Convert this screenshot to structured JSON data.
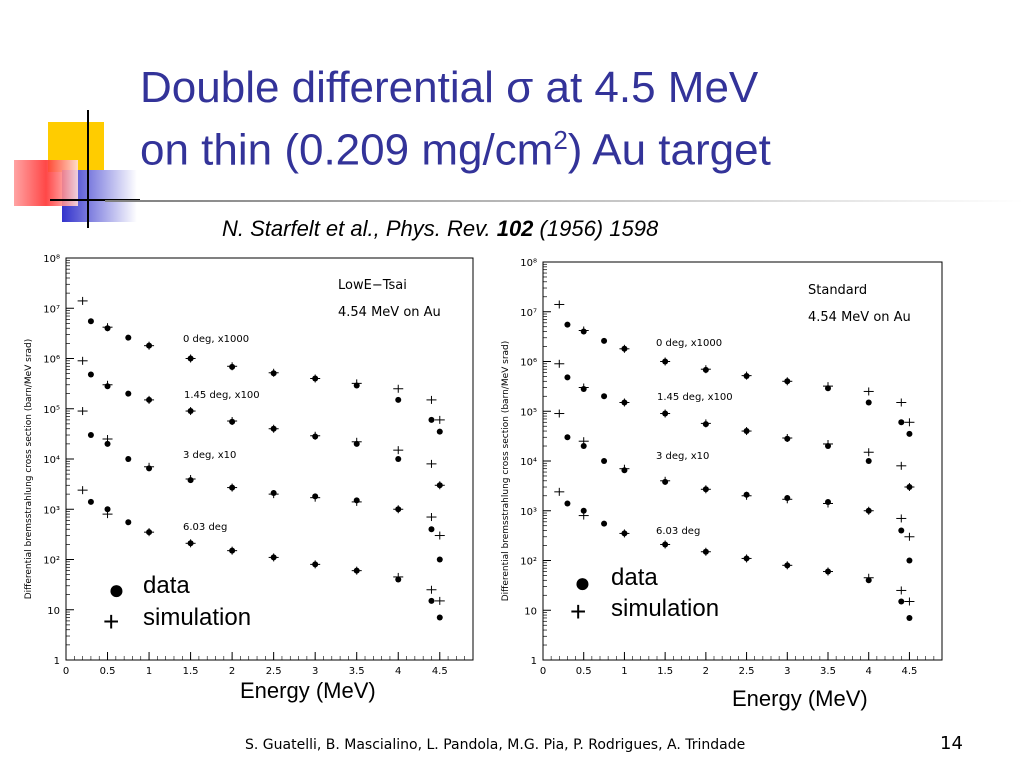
{
  "slide": {
    "title_line1": "Double differential σ at 4.5 MeV",
    "title_line2_a": "on thin (0.209 mg/cm",
    "title_line2_sup": "2",
    "title_line2_b": ") Au target",
    "citation_a": "N. Starfelt et al., Phys. Rev. ",
    "citation_b": "102",
    "citation_c": " (1956) 1598",
    "footer": "S. Guatelli, B. Mascialino, L. Pandola, M.G. Pia, P. Rodrigues, A. Trindade",
    "page_number": "14",
    "colors": {
      "title": "#333399",
      "deco_yellow": "#ffcc00",
      "deco_blue": "#3333cc",
      "deco_red": "#ff3333"
    }
  },
  "chart_data": [
    {
      "type": "scatter",
      "title": "",
      "xlabel": "Energy (MeV)",
      "ylabel": "Differential bremsstrahlung cross section (barn/MeV srad)",
      "xlim": [
        0,
        4.9
      ],
      "ylim": [
        1,
        100000000
      ],
      "yscale": "log",
      "xticks": [
        "0",
        "0.5",
        "1",
        "1.5",
        "2",
        "2.5",
        "3",
        "3.5",
        "4",
        "4.5"
      ],
      "yticks": [
        "1",
        "10",
        "10²",
        "10³",
        "10⁴",
        "10⁵",
        "10⁶",
        "10⁷",
        "10⁸"
      ],
      "annotations": [
        "LowE−Tsai",
        "4.54 MeV on Au"
      ],
      "legend": {
        "data": "data",
        "simulation": "simulation"
      },
      "series": [
        {
          "label": "0 deg, x1000",
          "name": "data",
          "x": [
            0.3,
            0.5,
            0.75,
            1.0,
            1.5,
            2.0,
            2.5,
            3.0,
            3.5,
            4.0,
            4.4,
            4.5
          ],
          "y": [
            5500000,
            4000000,
            2600000,
            1800000,
            1000000,
            680000,
            510000,
            400000,
            290000,
            150000,
            60000,
            35000
          ]
        },
        {
          "label": "0 deg, x1000",
          "name": "simulation",
          "x": [
            0.2,
            0.5,
            1.0,
            1.5,
            2.0,
            2.5,
            3.0,
            3.5,
            4.0,
            4.4,
            4.5
          ],
          "y": [
            14000000,
            4200000,
            1800000,
            1000000,
            700000,
            520000,
            400000,
            320000,
            250000,
            150000,
            60000
          ]
        },
        {
          "label": "1.45 deg, x100",
          "name": "data",
          "x": [
            0.3,
            0.5,
            0.75,
            1.0,
            1.5,
            2.0,
            2.5,
            3.0,
            3.5,
            4.0,
            4.5
          ],
          "y": [
            480000,
            280000,
            200000,
            150000,
            90000,
            55000,
            40000,
            28000,
            20000,
            10000,
            3000
          ]
        },
        {
          "label": "1.45 deg, x100",
          "name": "simulation",
          "x": [
            0.2,
            0.5,
            1.0,
            1.5,
            2.0,
            2.5,
            3.0,
            3.5,
            4.0,
            4.4,
            4.5
          ],
          "y": [
            900000,
            300000,
            150000,
            90000,
            57000,
            40000,
            29000,
            22000,
            15000,
            8000,
            3000
          ]
        },
        {
          "label": "3 deg, x10",
          "name": "data",
          "x": [
            0.3,
            0.5,
            0.75,
            1.0,
            1.5,
            2.0,
            2.5,
            3.0,
            3.5,
            4.0,
            4.4,
            4.5
          ],
          "y": [
            30000,
            20000,
            10000,
            6500,
            3800,
            2700,
            2100,
            1800,
            1500,
            1000,
            400,
            100
          ]
        },
        {
          "label": "3 deg, x10",
          "name": "simulation",
          "x": [
            0.2,
            0.5,
            1.0,
            1.5,
            2.0,
            2.5,
            3.0,
            3.5,
            4.0,
            4.4,
            4.5
          ],
          "y": [
            90000,
            25000,
            7000,
            4000,
            2700,
            2000,
            1700,
            1400,
            1000,
            700,
            300
          ]
        },
        {
          "label": "6.03 deg",
          "name": "data",
          "x": [
            0.3,
            0.5,
            0.75,
            1.0,
            1.5,
            2.0,
            2.5,
            3.0,
            3.5,
            4.0,
            4.4,
            4.5
          ],
          "y": [
            1400,
            1000,
            550,
            350,
            210,
            150,
            110,
            80,
            60,
            40,
            15,
            7
          ]
        },
        {
          "label": "6.03 deg",
          "name": "simulation",
          "x": [
            0.2,
            0.5,
            1.0,
            1.5,
            2.0,
            2.5,
            3.0,
            3.5,
            4.0,
            4.4,
            4.5
          ],
          "y": [
            2400,
            800,
            350,
            210,
            150,
            110,
            80,
            60,
            45,
            25,
            15
          ]
        }
      ]
    },
    {
      "type": "scatter",
      "title": "",
      "xlabel": "Energy (MeV)",
      "ylabel": "Differential bremsstrahlung cross section (barn/MeV srad)",
      "xlim": [
        0,
        4.9
      ],
      "ylim": [
        1,
        100000000
      ],
      "yscale": "log",
      "xticks": [
        "0",
        "0.5",
        "1",
        "1.5",
        "2",
        "2.5",
        "3",
        "3.5",
        "4",
        "4.5"
      ],
      "yticks": [
        "1",
        "10",
        "10²",
        "10³",
        "10⁴",
        "10⁵",
        "10⁶",
        "10⁷",
        "10⁸"
      ],
      "annotations": [
        "Standard",
        "4.54 MeV on Au"
      ],
      "legend": {
        "data": "data",
        "simulation": "simulation"
      },
      "series": [
        {
          "label": "0 deg, x1000",
          "name": "data",
          "x": [
            0.3,
            0.5,
            0.75,
            1.0,
            1.5,
            2.0,
            2.5,
            3.0,
            3.5,
            4.0,
            4.4,
            4.5
          ],
          "y": [
            5500000,
            4000000,
            2600000,
            1800000,
            1000000,
            680000,
            510000,
            400000,
            290000,
            150000,
            60000,
            35000
          ]
        },
        {
          "label": "0 deg, x1000",
          "name": "simulation",
          "x": [
            0.2,
            0.5,
            1.0,
            1.5,
            2.0,
            2.5,
            3.0,
            3.5,
            4.0,
            4.4,
            4.5
          ],
          "y": [
            14000000,
            4200000,
            1800000,
            1000000,
            700000,
            520000,
            400000,
            320000,
            250000,
            150000,
            60000
          ]
        },
        {
          "label": "1.45 deg, x100",
          "name": "data",
          "x": [
            0.3,
            0.5,
            0.75,
            1.0,
            1.5,
            2.0,
            2.5,
            3.0,
            3.5,
            4.0,
            4.5
          ],
          "y": [
            480000,
            280000,
            200000,
            150000,
            90000,
            55000,
            40000,
            28000,
            20000,
            10000,
            3000
          ]
        },
        {
          "label": "1.45 deg, x100",
          "name": "simulation",
          "x": [
            0.2,
            0.5,
            1.0,
            1.5,
            2.0,
            2.5,
            3.0,
            3.5,
            4.0,
            4.4,
            4.5
          ],
          "y": [
            900000,
            300000,
            150000,
            90000,
            57000,
            40000,
            29000,
            22000,
            15000,
            8000,
            3000
          ]
        },
        {
          "label": "3 deg, x10",
          "name": "data",
          "x": [
            0.3,
            0.5,
            0.75,
            1.0,
            1.5,
            2.0,
            2.5,
            3.0,
            3.5,
            4.0,
            4.4,
            4.5
          ],
          "y": [
            30000,
            20000,
            10000,
            6500,
            3800,
            2700,
            2100,
            1800,
            1500,
            1000,
            400,
            100
          ]
        },
        {
          "label": "3 deg, x10",
          "name": "simulation",
          "x": [
            0.2,
            0.5,
            1.0,
            1.5,
            2.0,
            2.5,
            3.0,
            3.5,
            4.0,
            4.4,
            4.5
          ],
          "y": [
            90000,
            25000,
            7000,
            4000,
            2700,
            2000,
            1700,
            1400,
            1000,
            700,
            300
          ]
        },
        {
          "label": "6.03 deg",
          "name": "data",
          "x": [
            0.3,
            0.5,
            0.75,
            1.0,
            1.5,
            2.0,
            2.5,
            3.0,
            3.5,
            4.0,
            4.4,
            4.5
          ],
          "y": [
            1400,
            1000,
            550,
            350,
            210,
            150,
            110,
            80,
            60,
            40,
            15,
            7
          ]
        },
        {
          "label": "6.03 deg",
          "name": "simulation",
          "x": [
            0.2,
            0.5,
            1.0,
            1.5,
            2.0,
            2.5,
            3.0,
            3.5,
            4.0,
            4.4,
            4.5
          ],
          "y": [
            2400,
            800,
            350,
            210,
            150,
            110,
            80,
            60,
            45,
            25,
            15
          ]
        }
      ]
    }
  ]
}
